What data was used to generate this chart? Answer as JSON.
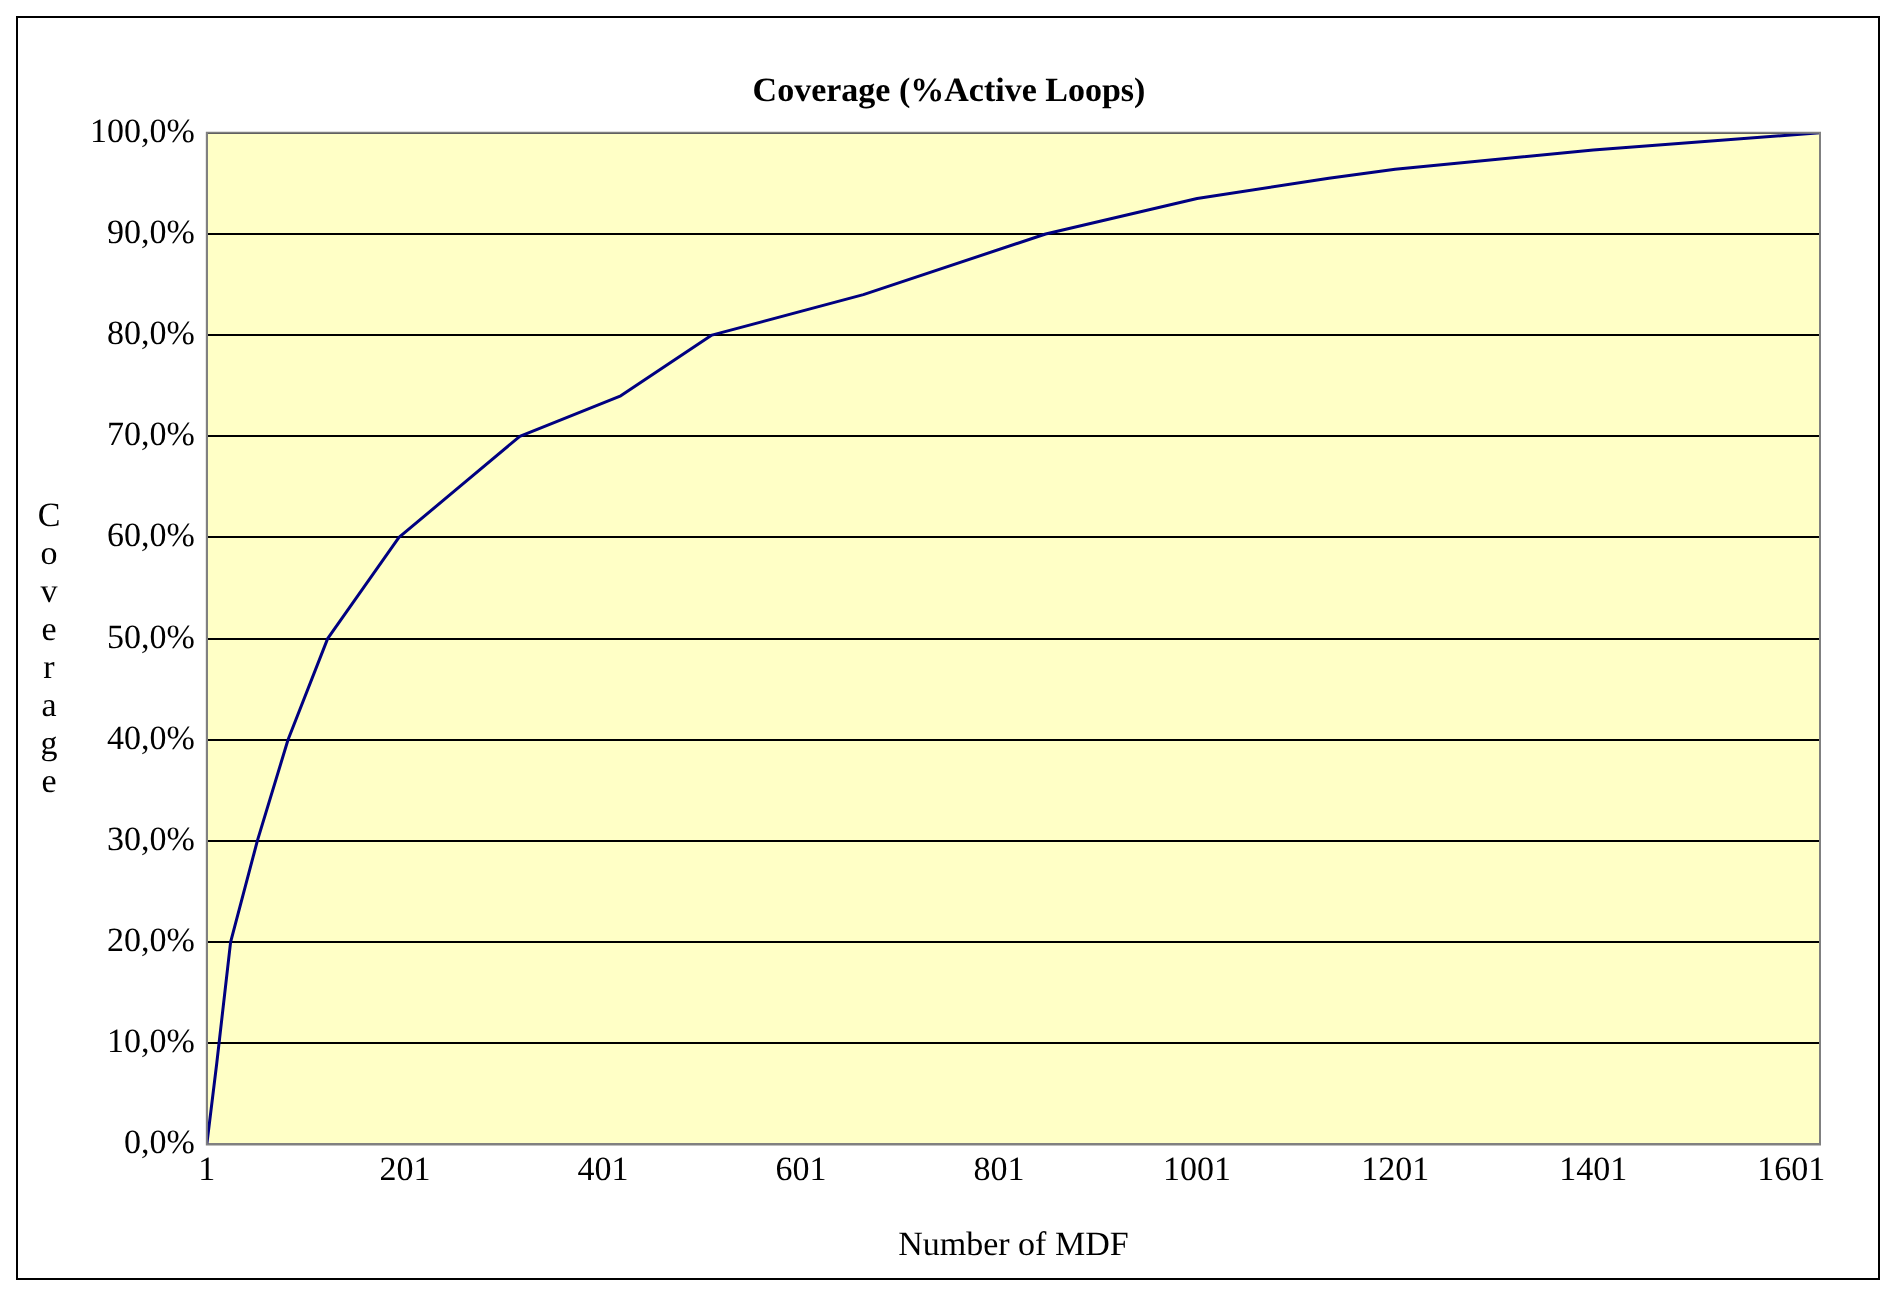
{
  "chart_data": {
    "type": "line",
    "title": "Coverage (%Active Loops)",
    "xlabel": "Number of MDF",
    "ylabel": "Coverage",
    "x": [
      1,
      11,
      25,
      52,
      83,
      123,
      195,
      256,
      317,
      419,
      511,
      664,
      848,
      1001,
      1134,
      1201,
      1401,
      1630
    ],
    "series": [
      {
        "color": "#000080",
        "values": [
          0,
          8,
          20,
          30,
          40,
          50,
          60,
          65,
          70,
          74,
          80,
          84,
          90,
          93.5,
          95.5,
          96.4,
          98.3,
          100
        ]
      }
    ],
    "xlim": [
      1,
      1630
    ],
    "xticks": [
      1,
      201,
      401,
      601,
      801,
      1001,
      1201,
      1401,
      1601
    ],
    "ylim": [
      0,
      100
    ],
    "yticks": [
      {
        "value": 0,
        "label": "0,0%"
      },
      {
        "value": 10,
        "label": "10,0%"
      },
      {
        "value": 20,
        "label": "20,0%"
      },
      {
        "value": 30,
        "label": "30,0%"
      },
      {
        "value": 40,
        "label": "40,0%"
      },
      {
        "value": 50,
        "label": "50,0%"
      },
      {
        "value": 60,
        "label": "60,0%"
      },
      {
        "value": 70,
        "label": "70,0%"
      },
      {
        "value": 80,
        "label": "80,0%"
      },
      {
        "value": 90,
        "label": "90,0%"
      },
      {
        "value": 100,
        "label": "100,0%"
      }
    ],
    "grid": "y",
    "legend": false,
    "marker": "none",
    "line_style": "solid"
  }
}
